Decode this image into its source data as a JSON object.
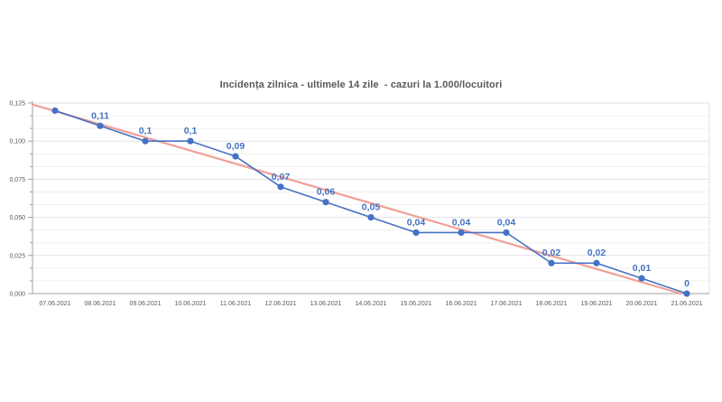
{
  "chart_data": {
    "type": "line",
    "title": "Incidența zilnica - ultimele 14 zile  - cazuri la 1.000/locuitori",
    "categories": [
      "07.06.2021",
      "08.06.2021",
      "09.06.2021",
      "10.06.2021",
      "11.06.2021",
      "12.06.2021",
      "13.06.2021",
      "14.06.2021",
      "15.06.2021",
      "16.06.2021",
      "17.06.2021",
      "18.06.2021",
      "19.06.2021",
      "20.06.2021",
      "21.06.2021"
    ],
    "series": [
      {
        "role": "daily-incidence",
        "color": "#4472C4",
        "values": [
          0.12,
          0.11,
          0.1,
          0.1,
          0.09,
          0.07,
          0.06,
          0.05,
          0.04,
          0.04,
          0.04,
          0.02,
          0.02,
          0.01,
          0
        ],
        "point_labels": [
          "",
          "0,11",
          "0,1",
          "0,1",
          "0,09",
          "0,07",
          "0,06",
          "0,05",
          "0,04",
          "0,04",
          "0,04",
          "0,02",
          "0,02",
          "0,01",
          "0"
        ]
      }
    ],
    "trendline": {
      "role": "linear-trend",
      "color": "#F0A096",
      "start_value": 0.124,
      "end_value": 0
    },
    "y_axis": {
      "min": 0,
      "max": 0.125,
      "major_step": 0.025,
      "minor_divisions": 3,
      "ticks": [
        {
          "value": 0,
          "label": "0,000"
        },
        {
          "value": 0.025,
          "label": "0,025"
        },
        {
          "value": 0.05,
          "label": "0,050"
        },
        {
          "value": 0.075,
          "label": "0,075"
        },
        {
          "value": 0.1,
          "label": "0,100"
        },
        {
          "value": 0.125,
          "label": "0,125"
        }
      ]
    },
    "grid": true,
    "legend": "none",
    "colors": {
      "title": "#595959",
      "axis": "#a0a0a0",
      "major_gridline": "#e3e3e3",
      "minor_gridline": "#f0f0f0",
      "tick_label": "#595959",
      "data_label": "#4472C4"
    }
  }
}
